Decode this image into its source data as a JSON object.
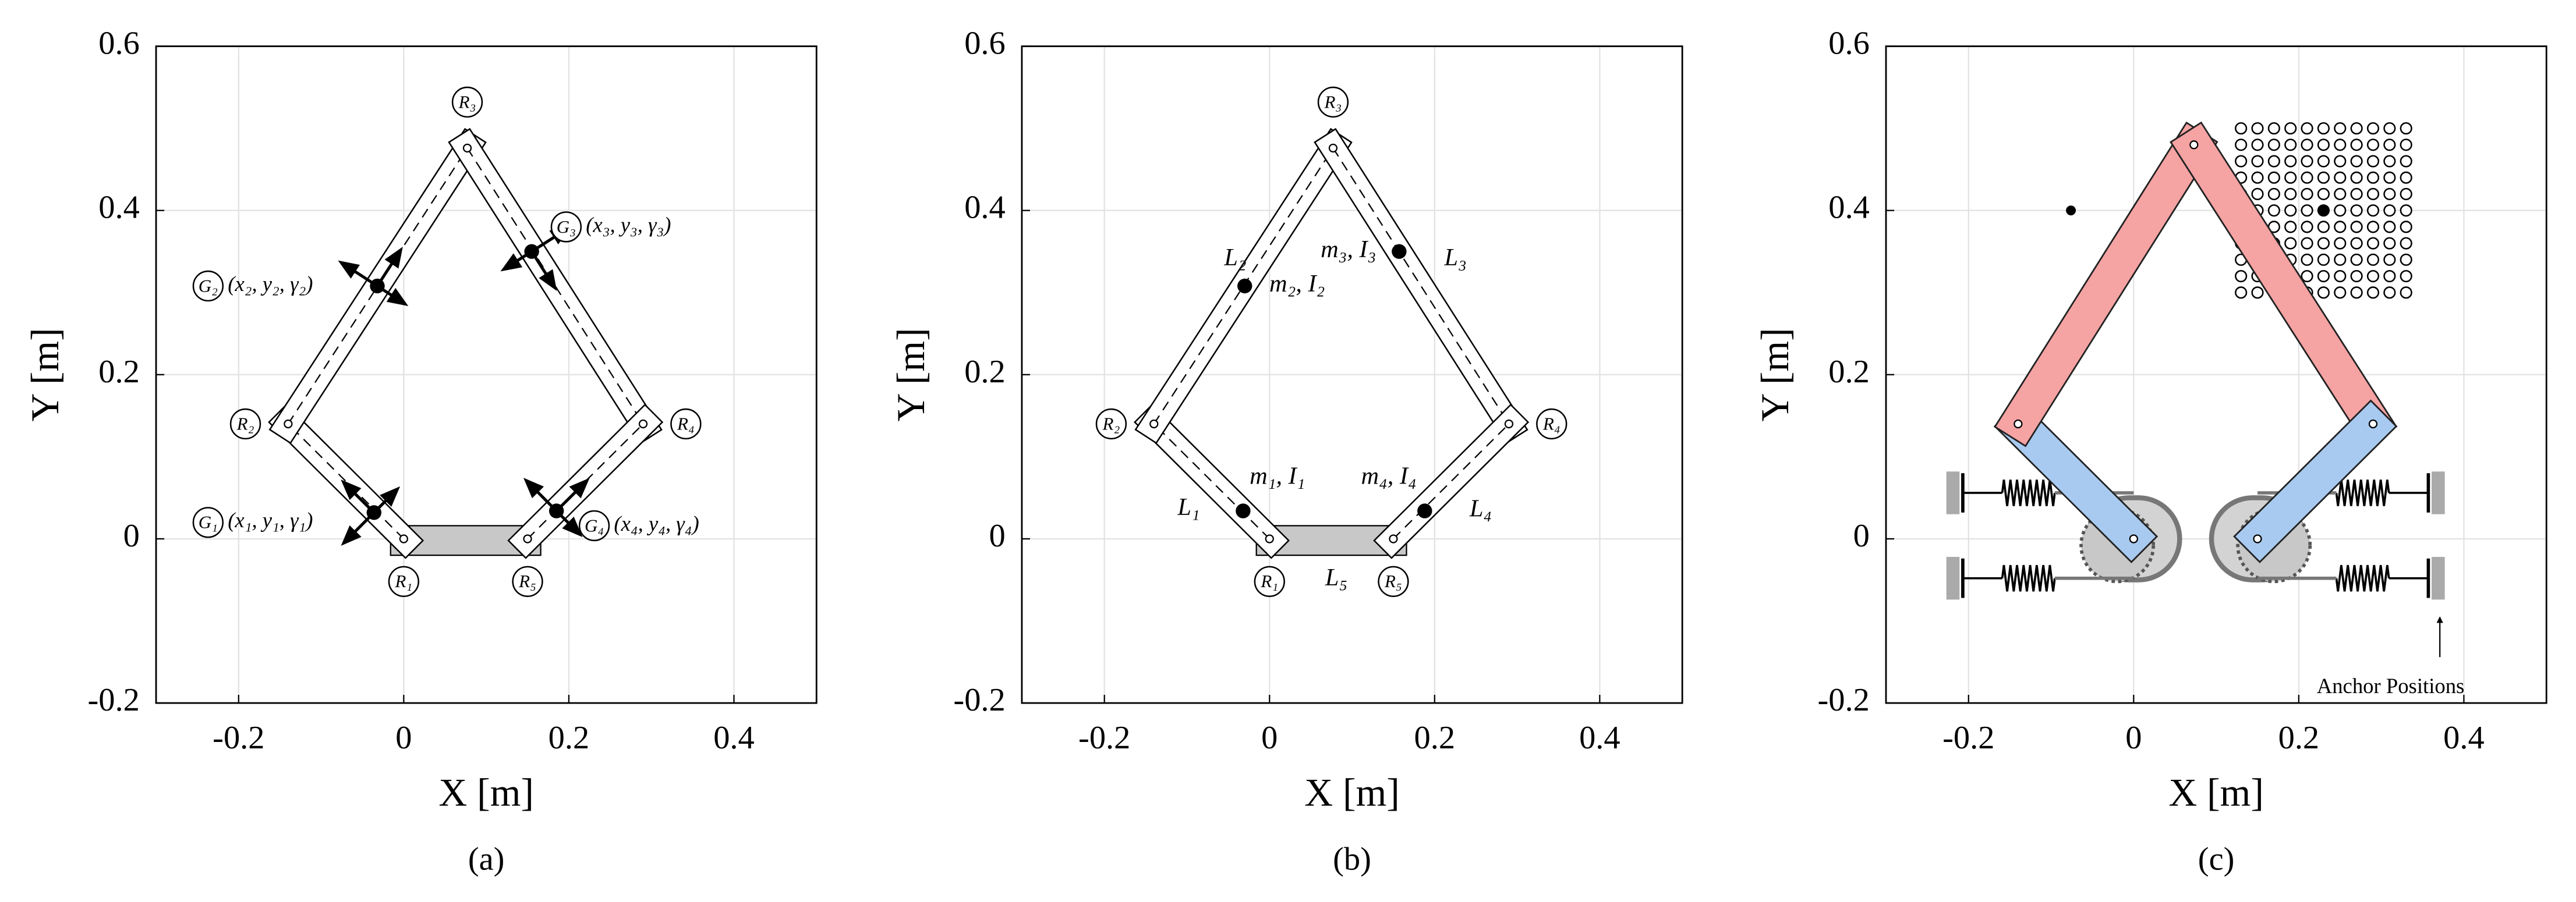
{
  "chart_data": [
    {
      "type": "mechanism",
      "caption": "(a)",
      "xlabel": "X [m]",
      "ylabel": "Y [m]",
      "xlim": [
        -0.3,
        0.5
      ],
      "ylim": [
        -0.2,
        0.6
      ],
      "xticks": [
        -0.2,
        0,
        0.2,
        0.4
      ],
      "yticks": [
        -0.2,
        0,
        0.2,
        0.4,
        0.6
      ],
      "grid": true,
      "joints": [
        {
          "label": "R₁",
          "x": 0,
          "y": 0
        },
        {
          "label": "R₂",
          "x": -0.14,
          "y": 0.14
        },
        {
          "label": "R₃",
          "x": 0.077,
          "y": 0.476
        },
        {
          "label": "R₄",
          "x": 0.29,
          "y": 0.14
        },
        {
          "label": "R₅",
          "x": 0.15,
          "y": 0
        }
      ],
      "links": [
        {
          "from": 0,
          "to": 1
        },
        {
          "from": 1,
          "to": 2
        },
        {
          "from": 2,
          "to": 3
        },
        {
          "from": 4,
          "to": 3
        }
      ],
      "base": {
        "from": 0,
        "to": 4
      },
      "coms": [
        {
          "label": "G₁",
          "coords": "(x₁, y₁, γ₁)",
          "x": -0.036,
          "y": 0.032
        },
        {
          "label": "G₂",
          "coords": "(x₂, y₂, γ₂)",
          "x": -0.032,
          "y": 0.308
        },
        {
          "label": "G₃",
          "coords": "(x₃, y₃, γ₃)",
          "x": 0.155,
          "y": 0.35
        },
        {
          "label": "G₄",
          "coords": "(x₄, y₄, γ₄)",
          "x": 0.185,
          "y": 0.034
        }
      ]
    },
    {
      "type": "mechanism",
      "caption": "(b)",
      "xlabel": "X [m]",
      "ylabel": "Y [m]",
      "xlim": [
        -0.3,
        0.5
      ],
      "ylim": [
        -0.2,
        0.6
      ],
      "xticks": [
        -0.2,
        0,
        0.2,
        0.4
      ],
      "yticks": [
        -0.2,
        0,
        0.2,
        0.4,
        0.6
      ],
      "grid": true,
      "joints": [
        {
          "label": "R₁",
          "x": 0,
          "y": 0
        },
        {
          "label": "R₂",
          "x": -0.14,
          "y": 0.14
        },
        {
          "label": "R₃",
          "x": 0.077,
          "y": 0.476
        },
        {
          "label": "R₄",
          "x": 0.29,
          "y": 0.14
        },
        {
          "label": "R₅",
          "x": 0.15,
          "y": 0
        }
      ],
      "links": [
        {
          "from": 0,
          "to": 1,
          "label": "L₁"
        },
        {
          "from": 1,
          "to": 2,
          "label": "L₂"
        },
        {
          "from": 2,
          "to": 3,
          "label": "L₃"
        },
        {
          "from": 4,
          "to": 3,
          "label": "L₄"
        }
      ],
      "base": {
        "from": 0,
        "to": 4,
        "label": "L₅"
      },
      "coms": [
        {
          "text": "m₁, I₁",
          "x": -0.032,
          "y": 0.034
        },
        {
          "text": "m₂, I₂",
          "x": -0.03,
          "y": 0.308
        },
        {
          "text": "m₃, I₃",
          "x": 0.157,
          "y": 0.35
        },
        {
          "text": "m₄, I₄",
          "x": 0.188,
          "y": 0.034
        }
      ]
    },
    {
      "type": "mechanism",
      "caption": "(c)",
      "xlabel": "X [m]",
      "ylabel": "Y [m]",
      "xlim": [
        -0.3,
        0.5
      ],
      "ylim": [
        -0.2,
        0.6
      ],
      "xticks": [
        -0.2,
        0,
        0.2,
        0.4
      ],
      "yticks": [
        -0.2,
        0,
        0.2,
        0.4,
        0.6
      ],
      "grid": true,
      "joints": [
        {
          "x": 0,
          "y": 0
        },
        {
          "x": -0.14,
          "y": 0.14
        },
        {
          "x": 0.073,
          "y": 0.48
        },
        {
          "x": 0.29,
          "y": 0.14
        },
        {
          "x": 0.15,
          "y": 0
        }
      ],
      "links": [
        {
          "from": 0,
          "to": 1,
          "color": "#a8caf0"
        },
        {
          "from": 1,
          "to": 2,
          "color": "#f5a3a3"
        },
        {
          "from": 2,
          "to": 3,
          "color": "#f5a3a3"
        },
        {
          "from": 4,
          "to": 3,
          "color": "#a8caf0"
        }
      ],
      "points": [
        {
          "x": -0.076,
          "y": 0.4
        },
        {
          "x": 0.23,
          "y": 0.4
        }
      ],
      "anchor_grid_x": [
        0.13,
        0.15,
        0.17,
        0.19,
        0.21,
        0.23,
        0.25,
        0.27,
        0.29,
        0.31,
        0.33
      ],
      "anchor_grid_y": [
        0.5,
        0.48,
        0.46,
        0.44,
        0.42,
        0.4,
        0.38,
        0.36,
        0.34,
        0.32,
        0.3
      ],
      "annotation": "Anchor Positions"
    }
  ]
}
